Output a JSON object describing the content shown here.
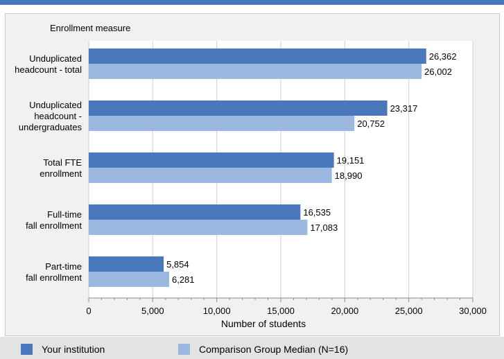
{
  "chart_data": {
    "type": "bar",
    "orientation": "horizontal",
    "title": "Enrollment measure",
    "xlabel": "Number of students",
    "ylabel": "",
    "xlim": [
      0,
      30000
    ],
    "x_ticks": [
      0,
      5000,
      10000,
      15000,
      20000,
      25000,
      30000
    ],
    "x_tick_labels": [
      "0",
      "5,000",
      "10,000",
      "15,000",
      "20,000",
      "25,000",
      "30,000"
    ],
    "categories": [
      [
        "Unduplicated",
        "headcount - total"
      ],
      [
        "Unduplicated",
        "headcount -",
        "undergraduates"
      ],
      [
        "Total FTE",
        "enrollment"
      ],
      [
        "Full-time",
        "fall enrollment"
      ],
      [
        "Part-time",
        "fall enrollment"
      ]
    ],
    "series": [
      {
        "name": "Your institution",
        "color": "#4a78bd",
        "values": [
          26362,
          23317,
          19151,
          16535,
          5854
        ],
        "value_labels": [
          "26,362",
          "23,317",
          "19,151",
          "16,535",
          "5,854"
        ]
      },
      {
        "name": "Comparison Group Median (N=16)",
        "color": "#9bb9e0",
        "values": [
          26002,
          20752,
          18990,
          17083,
          6281
        ],
        "value_labels": [
          "26,002",
          "20,752",
          "18,990",
          "17,083",
          "6,281"
        ]
      }
    ],
    "grid": true,
    "legend_position": "bottom"
  }
}
